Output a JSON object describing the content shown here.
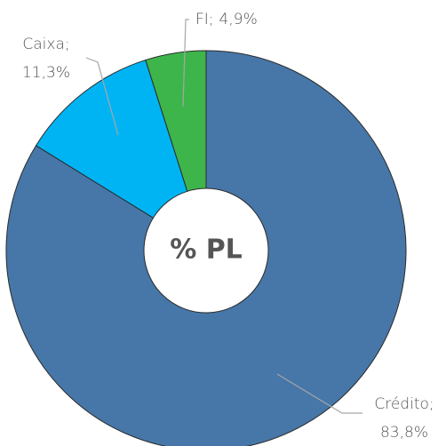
{
  "chart_data": {
    "type": "donut",
    "center_label": "% PL",
    "categories": [
      "Crédito;",
      "Caixa;",
      "FI;"
    ],
    "values": [
      83.8,
      11.3,
      4.9
    ],
    "value_labels": [
      "83,8%",
      "11,3%",
      "4,9%"
    ],
    "colors": [
      "#4677a8",
      "#00b4f4",
      "#3db54b"
    ]
  }
}
